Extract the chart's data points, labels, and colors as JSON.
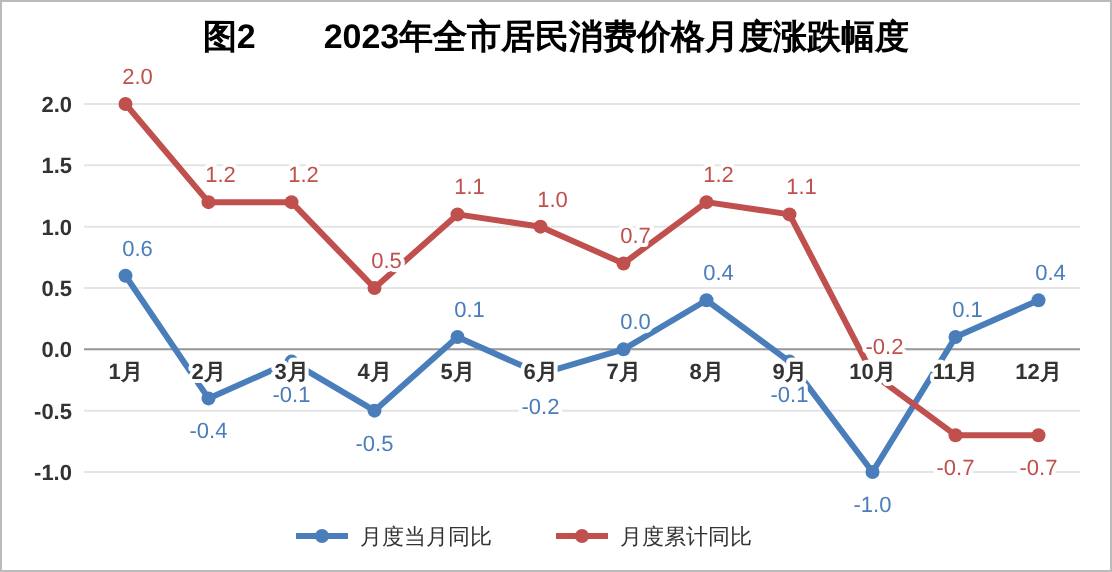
{
  "chart_data": {
    "type": "line",
    "title": "图2　　2023年全市居民消费价格月度涨跌幅度",
    "categories": [
      "1月",
      "2月",
      "3月",
      "4月",
      "5月",
      "6月",
      "7月",
      "8月",
      "9月",
      "10月",
      "11月",
      "12月"
    ],
    "series": [
      {
        "name": "月度当月同比",
        "color": "#4a7ebb",
        "values": [
          0.6,
          -0.4,
          -0.1,
          -0.5,
          0.1,
          -0.2,
          0.0,
          0.4,
          -0.1,
          -1.0,
          0.1,
          0.4
        ],
        "value_labels": [
          "0.6",
          "-0.4",
          "-0.1",
          "-0.5",
          "0.1",
          "-0.2",
          "0.0",
          "0.4",
          "-0.1",
          "-1.0",
          "0.1",
          "0.4"
        ]
      },
      {
        "name": "月度累计同比",
        "color": "#c0504d",
        "values": [
          2.0,
          1.2,
          1.2,
          0.5,
          1.1,
          1.0,
          0.7,
          1.2,
          1.1,
          -0.2,
          -0.7,
          -0.7
        ],
        "value_labels": [
          "2.0",
          "1.2",
          "1.2",
          "0.5",
          "1.1",
          "1.0",
          "0.7",
          "1.2",
          "1.1",
          "-0.2",
          "-0.7",
          "-0.7"
        ]
      }
    ],
    "ylim": [
      -1.0,
      2.0
    ],
    "yticks": [
      {
        "value": -1,
        "label": "-1.0"
      },
      {
        "value": -0.5,
        "label": "-0.5"
      },
      {
        "value": 0,
        "label": "0.0"
      },
      {
        "value": 0.5,
        "label": "0.5"
      },
      {
        "value": 1,
        "label": "1.0"
      },
      {
        "value": 1.5,
        "label": "1.5"
      },
      {
        "value": 2,
        "label": "2.0"
      }
    ],
    "grid": "y",
    "marker": "circle",
    "line_style": "solid",
    "legend": "bottom"
  }
}
